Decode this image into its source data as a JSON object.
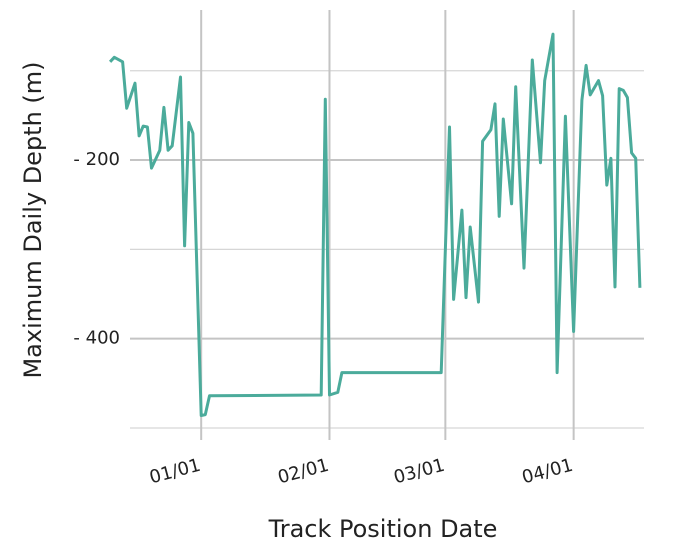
{
  "chart_data": {
    "type": "line",
    "x_label": "Track Position Date",
    "y_label": "Maximum Daily Depth (m)",
    "x": [
      "12/10",
      "12/11",
      "12/13",
      "12/14",
      "12/16",
      "12/17",
      "12/18",
      "12/19",
      "12/20",
      "12/22",
      "12/23",
      "12/24",
      "12/25",
      "12/27",
      "12/28",
      "12/29",
      "12/30",
      "01/01",
      "01/02",
      "01/03",
      "01/30",
      "01/31",
      "02/01",
      "02/03",
      "02/04",
      "02/28",
      "03/02",
      "03/03",
      "03/05",
      "03/06",
      "03/07",
      "03/09",
      "03/10",
      "03/12",
      "03/13",
      "03/14",
      "03/15",
      "03/17",
      "03/18",
      "03/20",
      "03/22",
      "03/24",
      "03/25",
      "03/27",
      "03/28",
      "03/30",
      "04/01",
      "04/03",
      "04/04",
      "04/05",
      "04/07",
      "04/08",
      "04/09",
      "04/10",
      "04/11",
      "04/12",
      "04/13",
      "04/14",
      "04/15",
      "04/16",
      "04/17"
    ],
    "series": [
      {
        "color": "#4bab9b",
        "values": [
          -90,
          -85,
          -90,
          -142,
          -114,
          -173,
          -162,
          -163,
          -209,
          -189,
          -141,
          -189,
          -184,
          -107,
          -296,
          -158,
          -170,
          -486,
          -485,
          -464,
          -463,
          -132,
          -463,
          -460,
          -438,
          -438,
          -163,
          -356,
          -256,
          -354,
          -275,
          -359,
          -179,
          -166,
          -137,
          -263,
          -154,
          -249,
          -118,
          -321,
          -88,
          -203,
          -111,
          -59,
          -438,
          -151,
          -392,
          -133,
          -94,
          -127,
          -111,
          -128,
          -228,
          -198,
          -342,
          -120,
          -122,
          -130,
          -192,
          -198,
          -343
        ]
      }
    ],
    "xlim": [
      "12/09",
      "04/18"
    ],
    "xticks": [
      "01/01",
      "02/01",
      "03/01",
      "04/01"
    ],
    "ylim": [
      -500,
      -32
    ],
    "yticks": [
      {
        "value": -200,
        "label": "- 200"
      },
      {
        "value": -400,
        "label": "- 400"
      }
    ],
    "y_minor_ticks": [
      -100,
      -300,
      -500
    ],
    "grid": true
  }
}
